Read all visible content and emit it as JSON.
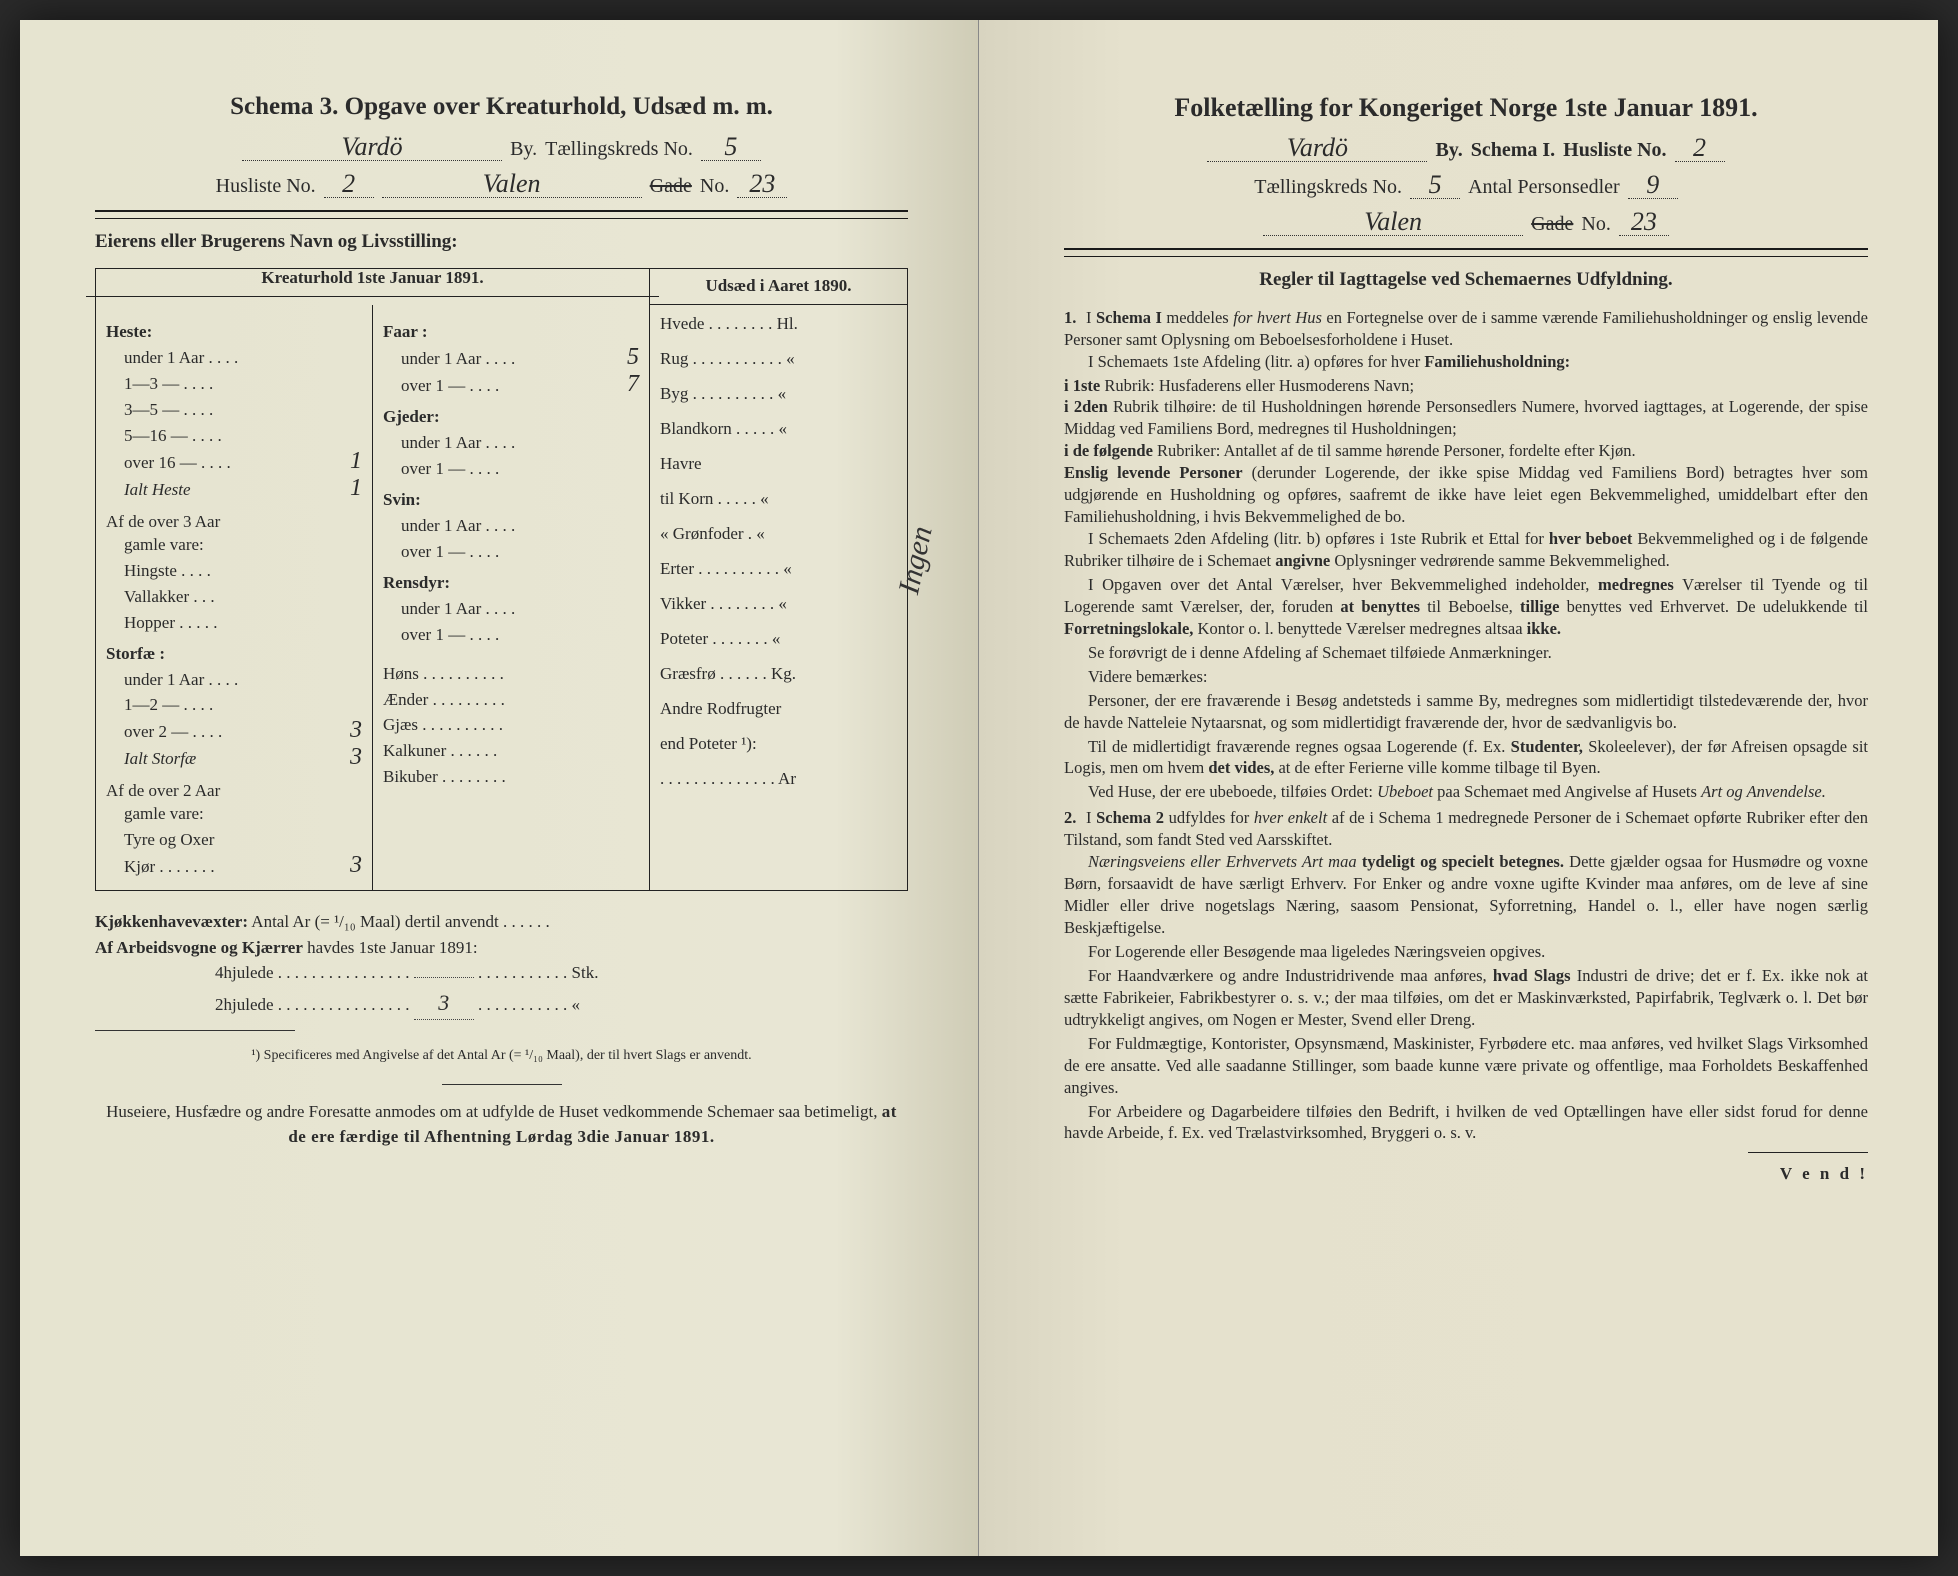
{
  "left": {
    "schema_title": "Schema 3.   Opgave over Kreaturhold, Udsæd m. m.",
    "by_value": "Vardö",
    "by_label": "By.",
    "kreds_label": "Tællingskreds No.",
    "kreds_value": "5",
    "husliste_label": "Husliste No.",
    "husliste_value": "2",
    "street_value": "Valen",
    "gade_label": "Gade",
    "gade_no_label": "No.",
    "gade_no_value": "23",
    "owner_label": "Eierens eller Brugerens Navn og Livsstilling:",
    "kreatur_head": "Kreaturhold 1ste Januar 1891.",
    "udsaed_head": "Udsæd i Aaret 1890.",
    "heste": {
      "title": "Heste:",
      "rows": [
        {
          "lbl": "under 1 Aar . . . .",
          "val": ""
        },
        {
          "lbl": "1—3   —  . . . .",
          "val": ""
        },
        {
          "lbl": "3—5   —  . . . .",
          "val": ""
        },
        {
          "lbl": "5—16 —  . . . .",
          "val": ""
        },
        {
          "lbl": "over 16 —  . . . .",
          "val": "1"
        }
      ],
      "total_lbl": "Ialt Heste",
      "total_val": "1",
      "over3_lbl": "Af de over 3 Aar",
      "gamle_lbl": "gamle vare:",
      "sub": [
        {
          "lbl": "Hingste . . . .",
          "val": ""
        },
        {
          "lbl": "Vallakker . . .",
          "val": ""
        },
        {
          "lbl": "Hopper . . . . .",
          "val": ""
        }
      ]
    },
    "storfae": {
      "title": "Storfæ :",
      "rows": [
        {
          "lbl": "under 1 Aar . . . .",
          "val": ""
        },
        {
          "lbl": "1—2   —  . . . .",
          "val": ""
        },
        {
          "lbl": "over 2   —  . . . .",
          "val": "3"
        }
      ],
      "total_lbl": "Ialt Storfæ",
      "total_val": "3",
      "over2_lbl": "Af de over 2 Aar",
      "gamle_lbl": "gamle vare:",
      "sub": [
        {
          "lbl": "Tyre og Oxer",
          "val": ""
        },
        {
          "lbl": "Kjør . . . . . . .",
          "val": "3"
        }
      ]
    },
    "col2": {
      "faar_title": "Faar :",
      "faar_rows": [
        {
          "lbl": "under 1 Aar . . . .",
          "val": "5"
        },
        {
          "lbl": "over 1   —  . . . .",
          "val": "7"
        }
      ],
      "gjeder_title": "Gjeder:",
      "gjeder_rows": [
        {
          "lbl": "under 1 Aar . . . .",
          "val": ""
        },
        {
          "lbl": "over 1   —  . . . .",
          "val": ""
        }
      ],
      "svin_title": "Svin:",
      "svin_rows": [
        {
          "lbl": "under 1 Aar . . . .",
          "val": ""
        },
        {
          "lbl": "over 1   —  . . . .",
          "val": ""
        }
      ],
      "rensdyr_title": "Rensdyr:",
      "rensdyr_rows": [
        {
          "lbl": "under 1 Aar . . . .",
          "val": ""
        },
        {
          "lbl": "over 1   —  . . . .",
          "val": ""
        }
      ],
      "misc": [
        {
          "lbl": "Høns . . . . . . . . . .",
          "val": ""
        },
        {
          "lbl": "Ænder . . . . . . . . .",
          "val": ""
        },
        {
          "lbl": "Gjæs . . . . . . . . . .",
          "val": ""
        },
        {
          "lbl": "Kalkuner . . . . . .",
          "val": ""
        },
        {
          "lbl": "Bikuber . . . . . . . .",
          "val": ""
        }
      ]
    },
    "col3": [
      {
        "lbl": "Hvede . . . . . . . . Hl.",
        "val": ""
      },
      {
        "lbl": "Rug . . . . . . . . . . .  «",
        "val": ""
      },
      {
        "lbl": "Byg . . . . . . . . . .  «",
        "val": ""
      },
      {
        "lbl": "Blandkorn . . . . .  «",
        "val": ""
      },
      {
        "lbl": "Havre",
        "val": ""
      },
      {
        "lbl": "   til Korn . . . . .  «",
        "val": ""
      },
      {
        "lbl": "   «  Grønfoder .  «",
        "val": ""
      },
      {
        "lbl": "Erter . . . . . . . . . .  «",
        "val": ""
      },
      {
        "lbl": "Vikker . . . . . . . .  «",
        "val": ""
      },
      {
        "lbl": "Poteter . . . . . . .  «",
        "val": ""
      },
      {
        "lbl": "Græsfrø . . . . . . Kg.",
        "val": ""
      },
      {
        "lbl": "Andre Rodfrugter",
        "val": ""
      },
      {
        "lbl": "   end Poteter ¹):",
        "val": ""
      },
      {
        "lbl": ". . . . . . . . . . . . . . Ar",
        "val": ""
      }
    ],
    "vertical_note": "Ingen",
    "kjokken_lbl": "Kjøkkenhavevæxter:",
    "kjokken_txt": "Antal Ar (= ¹/₁₀ Maal) dertil anvendt . . . . . .",
    "vogne_lbl": "Af Arbeidsvogne og Kjærrer",
    "vogne_txt": "havdes 1ste Januar 1891:",
    "hjul4_lbl": "4hjulede . . . . . . . . . . . . . . . .",
    "hjul4_val": "",
    "hjul4_suffix": ". . . . . . . . . . . Stk.",
    "hjul2_lbl": "2hjulede . . . . . . . . . . . . . . . .",
    "hjul2_val": "3",
    "hjul2_suffix": ". . . . . . . . . . .   «",
    "footnote": "¹) Specificeres med Angivelse af det Antal Ar (= ¹/₁₀ Maal), der til hvert Slags er anvendt.",
    "final1": "Huseiere, Husfædre og andre Foresatte anmodes om at udfylde de Huset vedkommende Schemaer saa betimeligt, ",
    "final2": "at de ere færdige til Afhentning ",
    "final3": "Lørdag 3die Januar 1891."
  },
  "right": {
    "title": "Folketælling for Kongeriget Norge 1ste Januar 1891.",
    "by_value": "Vardö",
    "by_label": "By.",
    "schema_label": "Schema I.",
    "husliste_label": "Husliste No.",
    "husliste_value": "2",
    "kreds_label": "Tællingskreds No.",
    "kreds_value": "5",
    "personer_label": "Antal Personsedler",
    "personer_value": "9",
    "street_value": "Valen",
    "gade_label": "Gade",
    "gade_no_label": "No.",
    "gade_no_value": "23",
    "regler_head": "Regler til Iagttagelse ved Schemaernes Udfyldning.",
    "rule1_a": "I ",
    "rule1_b": "Schema I",
    "rule1_c": " meddeles ",
    "rule1_d": "for hvert Hus",
    "rule1_e": " en Fortegnelse over de i samme værende Familiehusholdninger og enslig levende Personer samt Oplysning om Beboelsesforholdene i Huset.",
    "p1": "I Schemaets 1ste Afdeling (litr. a) opføres for hver ",
    "p1b": "Familiehusholdning:",
    "p2a": "i 1ste",
    "p2b": " Rubrik: Husfaderens eller Husmoderens Navn;",
    "p3a": "i 2den",
    "p3b": " Rubrik tilhøire: de til Husholdningen hørende Personsedlers Numere, hvorved iagttages, at Logerende, der spise Middag ved Familiens Bord, medregnes til Husholdningen;",
    "p4a": "i de følgende",
    "p4b": " Rubriker: Antallet af de til samme hørende Personer, fordelte efter Kjøn.",
    "p5a": "Enslig levende Personer",
    "p5b": " (derunder Logerende, der ikke spise Middag ved Familiens Bord) betragtes hver som udgjørende en Husholdning og opføres, saafremt de ikke have leiet egen Bekvemmelighed, umiddelbart efter den Familiehusholdning, i hvis Bekvemmelighed de bo.",
    "p6": "I Schemaets 2den Afdeling (litr. b) opføres i 1ste Rubrik et Ettal for ",
    "p6b": "hver beboet",
    "p6c": " Bekvemmelighed og i de følgende Rubriker tilhøire de i Schemaet ",
    "p6d": "angivne",
    "p6e": " Oplysninger vedrørende samme Bekvemmelighed.",
    "p7a": "I Opgaven over det Antal Værelser, hver Bekvemmelighed indeholder, ",
    "p7b": "medregnes",
    "p7c": " Værelser til Tyende og til Logerende samt Værelser, der, foruden ",
    "p7d": "at benyttes",
    "p7e": " til Beboelse, ",
    "p7f": "tillige",
    "p7g": " benyttes ved Erhvervet.  De udelukkende til ",
    "p7h": "Forretningslokale,",
    "p7i": " Kontor o. l. benyttede Værelser medregnes altsaa ",
    "p7j": "ikke.",
    "p8": "Se forøvrigt de i denne Afdeling af Schemaet tilføiede Anmærkninger.",
    "p9": "Videre bemærkes:",
    "p10": "Personer, der ere fraværende i Besøg andetsteds i samme By, medregnes som midlertidigt tilstedeværende der, hvor de havde Natteleie Nytaarsnat, og som midlertidigt fraværende der, hvor de sædvanligvis bo.",
    "p11a": "Til de midlertidigt fraværende regnes ogsaa Logerende (f. Ex. ",
    "p11b": "Studenter,",
    "p11c": " Skoleelever), der før Afreisen opsagde sit Logis, men om hvem ",
    "p11d": "det vides,",
    "p11e": " at de efter Ferierne ville komme tilbage til Byen.",
    "p12a": "Ved Huse, der ere ubeboede, tilføies Ordet: ",
    "p12b": "Ubeboet",
    "p12c": " paa Schemaet med Angivelse af Husets ",
    "p12d": "Art og Anvendelse.",
    "rule2_a": "I ",
    "rule2_b": "Schema 2",
    "rule2_c": " udfyldes for ",
    "rule2_d": "hver enkelt",
    "rule2_e": " af de i Schema 1 medregnede Personer de i Schemaet opførte Rubriker efter den Tilstand, som fandt Sted ved Aarsskiftet.",
    "p13a": "Næringsveiens eller Erhvervets Art maa ",
    "p13b": "tydeligt og specielt betegnes.",
    "p13c": " Dette gjælder ogsaa for Husmødre og voxne Børn, forsaavidt de have særligt Erhverv.  For Enker og andre voxne ugifte Kvinder maa anføres, om de leve af sine Midler eller drive nogetslags Næring, saasom Pensionat, Syforretning, Handel o. l., eller have nogen særlig Beskjæftigelse.",
    "p14": "For Logerende eller Besøgende maa ligeledes Næringsveien opgives.",
    "p15a": "For Haandværkere og andre Industridrivende maa anføres, ",
    "p15b": "hvad Slags",
    "p15c": " Industri de drive; det er f. Ex. ikke nok at sætte Fabrikeier, Fabrikbestyrer o. s. v.; der maa tilføies, om det er Maskinværksted, Papirfabrik, Teglværk o. l.  Det bør udtrykkeligt angives, om Nogen er Mester, Svend eller Dreng.",
    "p16": "For Fuldmægtige, Kontorister, Opsynsmænd, Maskinister, Fyrbødere etc. maa anføres, ved hvilket Slags Virksomhed de ere ansatte.  Ved alle saadanne Stillinger, som baade kunne være private og offentlige, maa Forholdets Beskaffenhed angives.",
    "p17": "For Arbeidere og Dagarbeidere tilføies den Bedrift, i hvilken de ved Optællingen have eller sidst forud for denne havde Arbeide, f. Ex. ved Trælastvirksomhed, Bryggeri o. s. v.",
    "vend": "V e n d !"
  }
}
